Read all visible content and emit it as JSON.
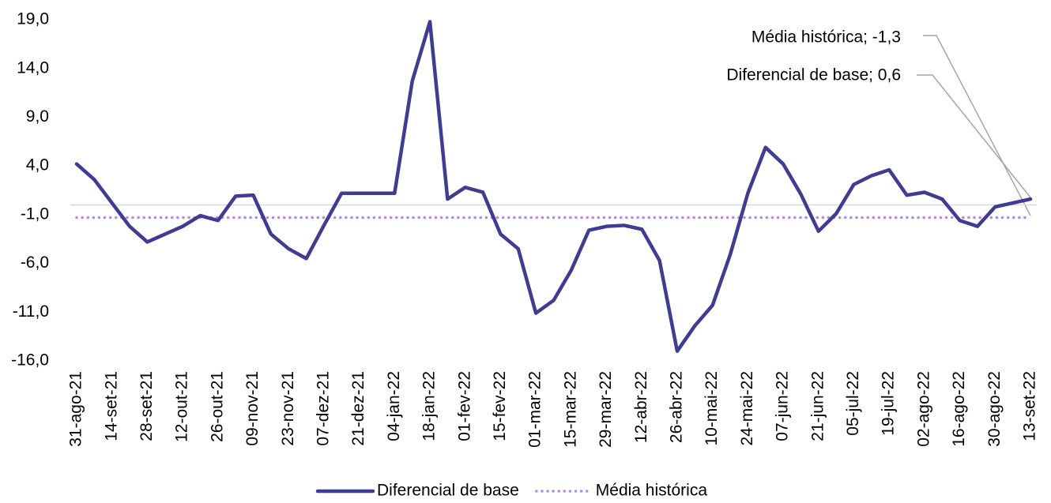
{
  "chart_data": {
    "type": "line",
    "categories": [
      "31-ago-21",
      null,
      "14-set-21",
      null,
      "28-set-21",
      null,
      "12-out-21",
      null,
      "26-out-21",
      null,
      "09-nov-21",
      null,
      "23-nov-21",
      null,
      "07-dez-21",
      null,
      "21-dez-21",
      null,
      "04-jan-22",
      null,
      "18-jan-22",
      null,
      "01-fev-22",
      null,
      "15-fev-22",
      null,
      "01-mar-22",
      null,
      "15-mar-22",
      null,
      "29-mar-22",
      null,
      "12-abr-22",
      null,
      "26-abr-22",
      null,
      "10-mai-22",
      null,
      "24-mai-22",
      null,
      "07-jun-22",
      null,
      "21-jun-22",
      null,
      "05-jul-22",
      null,
      "19-jul-22",
      null,
      "02-ago-22",
      null,
      "16-ago-22",
      null,
      "30-ago-22",
      null,
      "13-set-22"
    ],
    "series": [
      {
        "name": "Diferencial de base",
        "color": "#3f3d92",
        "style": "solid",
        "values": [
          4.2,
          2.6,
          0.2,
          -2.2,
          -3.8,
          -3.0,
          -2.2,
          -1.1,
          -1.6,
          0.9,
          1.0,
          -3.0,
          -4.5,
          -5.5,
          -2.1,
          1.2,
          1.2,
          1.2,
          1.2,
          12.7,
          18.8,
          0.6,
          1.8,
          1.3,
          -3.0,
          -4.5,
          -11.1,
          -9.8,
          -6.7,
          -2.6,
          -2.2,
          -2.1,
          -2.5,
          -5.7,
          -15.0,
          -12.4,
          -10.3,
          -5.1,
          1.2,
          5.9,
          4.2,
          1.1,
          -2.7,
          -0.9,
          2.1,
          3.0,
          3.6,
          1.0,
          1.3,
          0.6,
          -1.6,
          -2.2,
          -0.2,
          0.2,
          0.6
        ]
      },
      {
        "name": "Média histórica",
        "color": "#b38be0",
        "style": "dotted",
        "values": [
          -1.3,
          -1.3,
          -1.3,
          -1.3,
          -1.3,
          -1.3,
          -1.3,
          -1.3,
          -1.3,
          -1.3,
          -1.3,
          -1.3,
          -1.3,
          -1.3,
          -1.3,
          -1.3,
          -1.3,
          -1.3,
          -1.3,
          -1.3,
          -1.3,
          -1.3,
          -1.3,
          -1.3,
          -1.3,
          -1.3,
          -1.3,
          -1.3,
          -1.3,
          -1.3,
          -1.3,
          -1.3,
          -1.3,
          -1.3,
          -1.3,
          -1.3,
          -1.3,
          -1.3,
          -1.3,
          -1.3,
          -1.3,
          -1.3,
          -1.3,
          -1.3,
          -1.3,
          -1.3,
          -1.3,
          -1.3,
          -1.3,
          -1.3,
          -1.3,
          -1.3,
          -1.3,
          -1.3,
          -1.3
        ]
      }
    ],
    "ylim": [
      -16,
      19
    ],
    "yticks": [
      {
        "value": 19,
        "label": "19,0"
      },
      {
        "value": 14,
        "label": "14,0"
      },
      {
        "value": 9,
        "label": "9,0"
      },
      {
        "value": 4,
        "label": "4,0"
      },
      {
        "value": -1,
        "label": "-1,0"
      },
      {
        "value": -6,
        "label": "-6,0"
      },
      {
        "value": -11,
        "label": "-11,0"
      },
      {
        "value": -16,
        "label": "-16,0"
      }
    ],
    "annotations": [
      "Média histórica; -1,3",
      "Diferencial de base; 0,6"
    ],
    "grid": false,
    "legend": "bottom"
  }
}
